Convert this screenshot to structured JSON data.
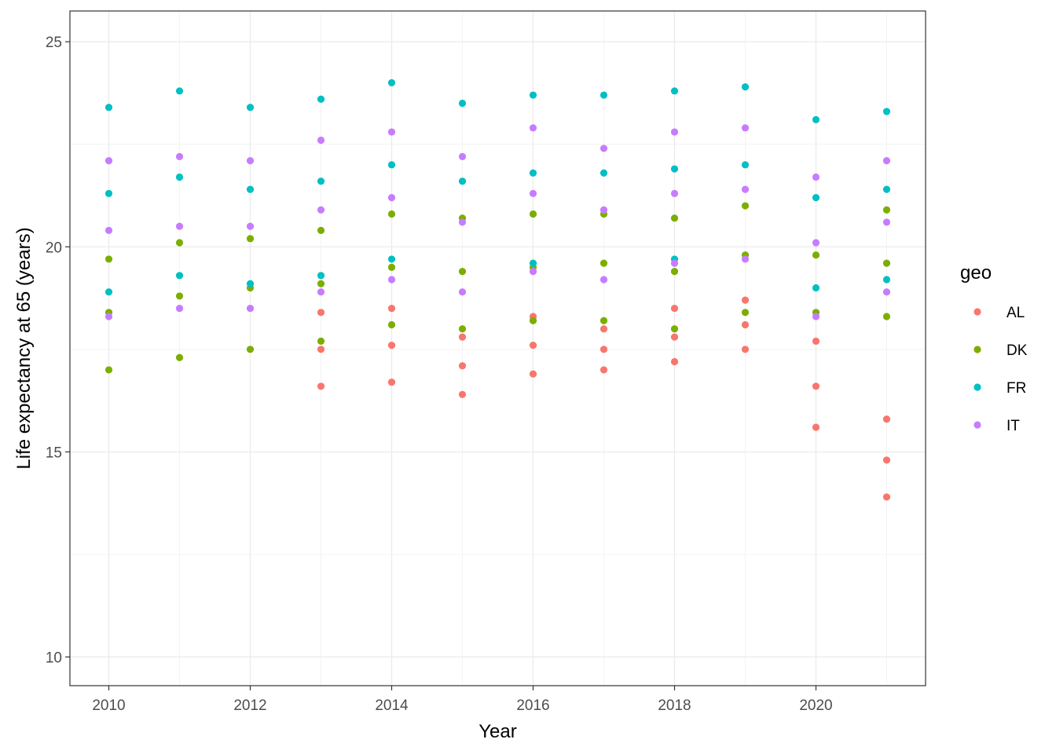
{
  "chart_data": {
    "type": "scatter",
    "title": "",
    "xlabel": "Year",
    "ylabel": "Life expectancy at 65 (years)",
    "xlim": [
      2009.45,
      2021.55
    ],
    "ylim": [
      9.3,
      25.75
    ],
    "x_ticks": [
      2010,
      2012,
      2014,
      2016,
      2018,
      2020
    ],
    "y_ticks": [
      10,
      15,
      20,
      25
    ],
    "grid": true,
    "legend": {
      "title": "geo",
      "position": "right"
    },
    "series": [
      {
        "name": "AL",
        "color": "#F8766D",
        "points": [
          [
            2013,
            18.4
          ],
          [
            2013,
            17.5
          ],
          [
            2013,
            16.6
          ],
          [
            2014,
            18.5
          ],
          [
            2014,
            17.6
          ],
          [
            2014,
            16.7
          ],
          [
            2015,
            17.8
          ],
          [
            2015,
            17.1
          ],
          [
            2015,
            16.4
          ],
          [
            2016,
            18.3
          ],
          [
            2016,
            17.6
          ],
          [
            2016,
            16.9
          ],
          [
            2017,
            18.0
          ],
          [
            2017,
            17.5
          ],
          [
            2017,
            17.0
          ],
          [
            2018,
            18.5
          ],
          [
            2018,
            17.8
          ],
          [
            2018,
            17.2
          ],
          [
            2019,
            18.7
          ],
          [
            2019,
            18.1
          ],
          [
            2019,
            17.5
          ],
          [
            2020,
            17.7
          ],
          [
            2020,
            16.6
          ],
          [
            2020,
            15.6
          ],
          [
            2021,
            15.8
          ],
          [
            2021,
            14.8
          ],
          [
            2021,
            13.9
          ]
        ]
      },
      {
        "name": "DK",
        "color": "#7CAE00",
        "points": [
          [
            2010,
            19.7
          ],
          [
            2010,
            18.4
          ],
          [
            2010,
            17.0
          ],
          [
            2011,
            20.1
          ],
          [
            2011,
            18.8
          ],
          [
            2011,
            17.3
          ],
          [
            2012,
            20.2
          ],
          [
            2012,
            19.0
          ],
          [
            2012,
            17.5
          ],
          [
            2013,
            20.4
          ],
          [
            2013,
            19.1
          ],
          [
            2013,
            17.7
          ],
          [
            2014,
            20.8
          ],
          [
            2014,
            19.5
          ],
          [
            2014,
            18.1
          ],
          [
            2015,
            20.7
          ],
          [
            2015,
            19.4
          ],
          [
            2015,
            18.0
          ],
          [
            2016,
            20.8
          ],
          [
            2016,
            19.5
          ],
          [
            2016,
            18.2
          ],
          [
            2017,
            20.8
          ],
          [
            2017,
            19.6
          ],
          [
            2017,
            18.2
          ],
          [
            2018,
            20.7
          ],
          [
            2018,
            19.4
          ],
          [
            2018,
            18.0
          ],
          [
            2019,
            21.0
          ],
          [
            2019,
            19.8
          ],
          [
            2019,
            18.4
          ],
          [
            2020,
            19.8
          ],
          [
            2020,
            18.4
          ],
          [
            2021,
            20.9
          ],
          [
            2021,
            19.6
          ],
          [
            2021,
            18.3
          ]
        ]
      },
      {
        "name": "FR",
        "color": "#00BFC4",
        "points": [
          [
            2010,
            23.4
          ],
          [
            2010,
            21.3
          ],
          [
            2010,
            18.9
          ],
          [
            2011,
            23.8
          ],
          [
            2011,
            21.7
          ],
          [
            2011,
            19.3
          ],
          [
            2012,
            23.4
          ],
          [
            2012,
            21.4
          ],
          [
            2012,
            19.1
          ],
          [
            2013,
            23.6
          ],
          [
            2013,
            21.6
          ],
          [
            2013,
            19.3
          ],
          [
            2014,
            24.0
          ],
          [
            2014,
            22.0
          ],
          [
            2014,
            19.7
          ],
          [
            2015,
            23.5
          ],
          [
            2015,
            21.6
          ],
          [
            2016,
            23.7
          ],
          [
            2016,
            21.8
          ],
          [
            2016,
            19.6
          ],
          [
            2017,
            23.7
          ],
          [
            2017,
            21.8
          ],
          [
            2018,
            23.8
          ],
          [
            2018,
            21.9
          ],
          [
            2018,
            19.7
          ],
          [
            2019,
            23.9
          ],
          [
            2019,
            22.0
          ],
          [
            2020,
            23.1
          ],
          [
            2020,
            21.2
          ],
          [
            2020,
            19.0
          ],
          [
            2021,
            23.3
          ],
          [
            2021,
            21.4
          ],
          [
            2021,
            19.2
          ]
        ]
      },
      {
        "name": "IT",
        "color": "#C77CFF",
        "points": [
          [
            2010,
            22.1
          ],
          [
            2010,
            20.4
          ],
          [
            2010,
            18.3
          ],
          [
            2011,
            22.2
          ],
          [
            2011,
            20.5
          ],
          [
            2011,
            18.5
          ],
          [
            2012,
            22.1
          ],
          [
            2012,
            20.5
          ],
          [
            2012,
            18.5
          ],
          [
            2013,
            22.6
          ],
          [
            2013,
            20.9
          ],
          [
            2013,
            18.9
          ],
          [
            2014,
            22.8
          ],
          [
            2014,
            21.2
          ],
          [
            2014,
            19.2
          ],
          [
            2015,
            22.2
          ],
          [
            2015,
            20.6
          ],
          [
            2015,
            18.9
          ],
          [
            2016,
            22.9
          ],
          [
            2016,
            21.3
          ],
          [
            2016,
            19.4
          ],
          [
            2017,
            22.4
          ],
          [
            2017,
            20.9
          ],
          [
            2017,
            19.2
          ],
          [
            2018,
            22.8
          ],
          [
            2018,
            21.3
          ],
          [
            2018,
            19.6
          ],
          [
            2019,
            22.9
          ],
          [
            2019,
            21.4
          ],
          [
            2019,
            19.7
          ],
          [
            2020,
            21.7
          ],
          [
            2020,
            20.1
          ],
          [
            2020,
            18.3
          ],
          [
            2021,
            22.1
          ],
          [
            2021,
            20.6
          ],
          [
            2021,
            18.9
          ]
        ]
      }
    ]
  }
}
